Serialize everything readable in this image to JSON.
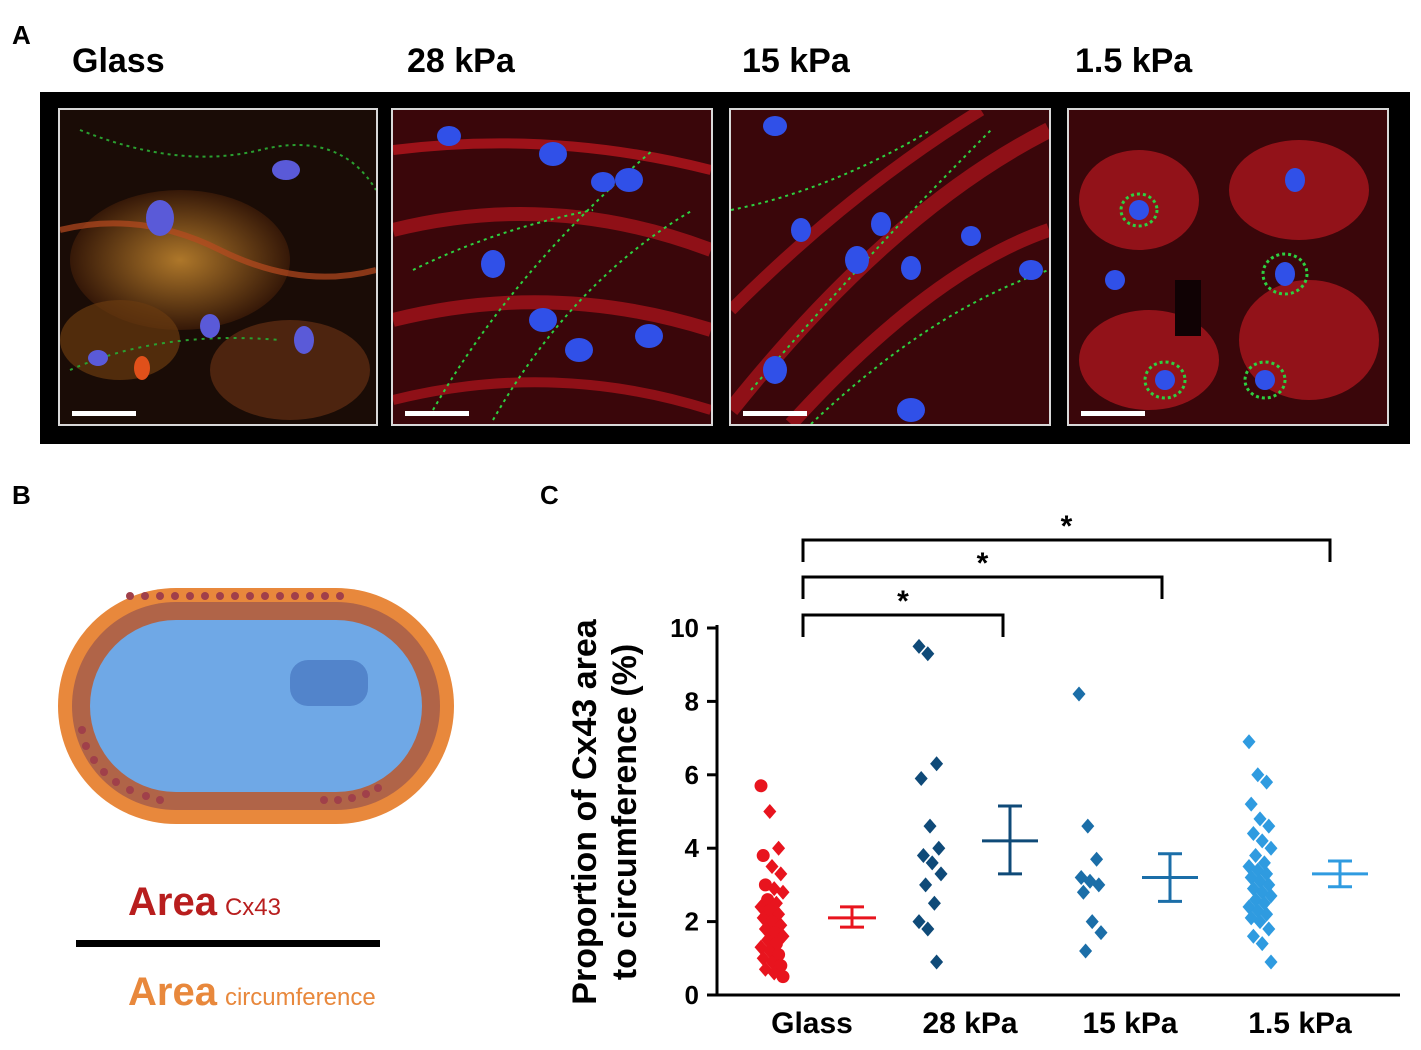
{
  "panels": {
    "a": "A",
    "b": "B",
    "c": "C"
  },
  "micrographs": [
    {
      "title": "Glass"
    },
    {
      "title": "28 kPa"
    },
    {
      "title": "15 kPa"
    },
    {
      "title": "1.5 kPa"
    }
  ],
  "formula": {
    "numerator": "Area",
    "numerator_sub": "Cx43",
    "denominator": "Area",
    "denominator_sub": "circumference"
  },
  "colors": {
    "glass": "#e8141e",
    "k28": "#0f4a78",
    "k15": "#1b6ea8",
    "k1_5": "#2f9be0",
    "cell_outer": "#e8883c",
    "cell_mid": "#b06448",
    "cell_inner": "#6fa8e6",
    "nucleus": "#4f80c8"
  },
  "chart_data": {
    "type": "scatter",
    "ylabel": "Proportion of Cx43 area to circumference (%)",
    "ylabel_lines": [
      "Proportion of Cx43 area",
      "to circumference (%)"
    ],
    "ylim": [
      0,
      10
    ],
    "yticks": [
      0,
      2,
      4,
      6,
      8,
      10
    ],
    "categories": [
      "Glass",
      "28 kPa",
      "15 kPa",
      "1.5 kPa"
    ],
    "series": [
      {
        "name": "Glass",
        "values": [
          5.7,
          5.0,
          4.0,
          3.8,
          3.5,
          3.3,
          3.0,
          2.9,
          2.8,
          2.6,
          2.5,
          2.4,
          2.3,
          2.2,
          2.1,
          2.0,
          1.9,
          1.8,
          1.7,
          1.6,
          1.5,
          1.4,
          1.3,
          1.2,
          1.1,
          1.0,
          0.9,
          0.8,
          0.7,
          0.6,
          0.5
        ],
        "mean": 2.1,
        "err_low": 1.85,
        "err_high": 2.4
      },
      {
        "name": "28 kPa",
        "values": [
          9.5,
          9.3,
          6.3,
          5.9,
          4.6,
          4.0,
          3.8,
          3.6,
          3.3,
          3.0,
          2.5,
          2.0,
          1.8,
          0.9
        ],
        "mean": 4.2,
        "err_low": 3.3,
        "err_high": 5.15
      },
      {
        "name": "15 kPa",
        "values": [
          8.2,
          4.6,
          3.7,
          3.2,
          3.1,
          3.0,
          2.8,
          2.0,
          1.7,
          1.2
        ],
        "mean": 3.2,
        "err_low": 2.55,
        "err_high": 3.85
      },
      {
        "name": "1.5 kPa",
        "values": [
          6.9,
          6.0,
          5.8,
          5.2,
          4.8,
          4.6,
          4.4,
          4.2,
          4.0,
          3.8,
          3.6,
          3.5,
          3.4,
          3.3,
          3.2,
          3.1,
          3.0,
          2.9,
          2.8,
          2.7,
          2.6,
          2.5,
          2.4,
          2.3,
          2.2,
          2.1,
          2.0,
          1.8,
          1.6,
          1.4,
          0.9
        ],
        "mean": 3.3,
        "err_low": 2.95,
        "err_high": 3.65
      }
    ],
    "significance": [
      {
        "from": "Glass",
        "to": "28 kPa",
        "label": "*"
      },
      {
        "from": "Glass",
        "to": "15 kPa",
        "label": "*"
      },
      {
        "from": "Glass",
        "to": "1.5 kPa",
        "label": "*"
      }
    ]
  }
}
